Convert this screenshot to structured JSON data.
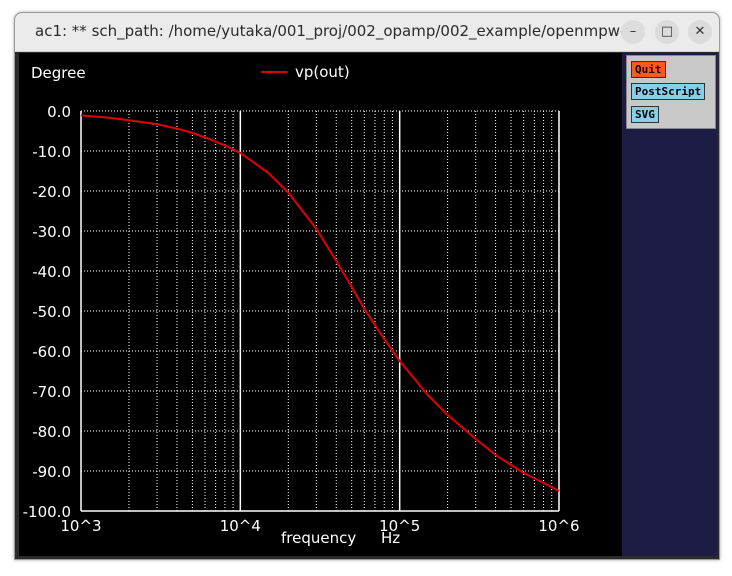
{
  "window": {
    "title": "ac1: ** sch_path: /home/yutaka/001_proj/002_opamp/002_example/openmpw-...",
    "minimize_glyph": "–",
    "maximize_glyph": "□",
    "close_glyph": "✕"
  },
  "side_panel": {
    "buttons": [
      {
        "label": "Quit",
        "color": "#ff5a1e"
      },
      {
        "label": "PostScript",
        "color": "#87ceeb"
      },
      {
        "label": "SVG",
        "color": "#87ceeb"
      }
    ]
  },
  "chart_data": {
    "type": "line",
    "ylabel": "Degree",
    "xlabel": "frequency",
    "xunit": "Hz",
    "xscale": "log",
    "xlim": [
      1000,
      1000000
    ],
    "ylim": [
      -100,
      0
    ],
    "yticks": [
      0,
      -10,
      -20,
      -30,
      -40,
      -50,
      -60,
      -70,
      -80,
      -90,
      -100
    ],
    "ytick_labels": [
      "0.0",
      "-10.0",
      "-20.0",
      "-30.0",
      "-40.0",
      "-50.0",
      "-60.0",
      "-70.0",
      "-80.0",
      "-90.0",
      "-100.0"
    ],
    "xticks": [
      1000,
      10000,
      100000,
      1000000
    ],
    "xtick_labels": [
      "10^3",
      "10^4",
      "10^5",
      "10^6"
    ],
    "grid": true,
    "background": "#000000",
    "axis_color": "#ffffff",
    "series": [
      {
        "name": "vp(out)",
        "color": "#e00000",
        "x": [
          1000,
          1500,
          2000,
          3000,
          4000,
          5000,
          6000,
          8000,
          10000,
          15000,
          20000,
          30000,
          40000,
          50000,
          60000,
          80000,
          100000,
          150000,
          200000,
          300000,
          400000,
          500000,
          600000,
          800000,
          1000000
        ],
        "y": [
          -1.1,
          -1.7,
          -2.3,
          -3.3,
          -4.4,
          -5.5,
          -6.6,
          -8.6,
          -10.5,
          -15.5,
          -20.4,
          -29.5,
          -37.5,
          -44.0,
          -49.5,
          -57.0,
          -62.5,
          -71.0,
          -76.0,
          -82.0,
          -86.0,
          -88.5,
          -90.5,
          -93.0,
          -95.0
        ]
      }
    ]
  }
}
